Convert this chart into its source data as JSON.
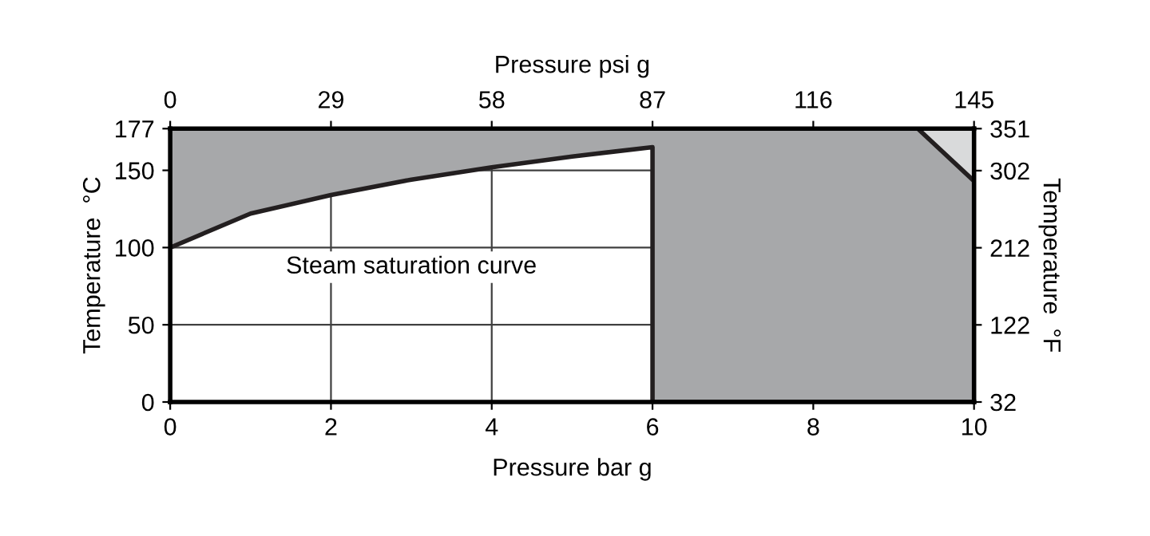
{
  "chart_data": {
    "type": "area",
    "stacked": true,
    "line_style": "solid",
    "xlabel": "Pressure bar g",
    "ylabel": "Temperature  °C",
    "y2label": "Temperature  °F",
    "x2label": "Pressure psi g",
    "xlim": [
      0,
      10
    ],
    "xticks": [
      0,
      2,
      4,
      6,
      8,
      10
    ],
    "ylim": [
      0,
      177
    ],
    "yticks": [
      0,
      50,
      100,
      150,
      177
    ],
    "x2lim": [
      0,
      145
    ],
    "x2ticks": [
      0,
      29,
      58,
      87,
      116,
      145
    ],
    "y2lim": [
      32,
      351
    ],
    "y2ticks": [
      32,
      122,
      212,
      302,
      351
    ],
    "grid": true,
    "legend": false,
    "annotations": [
      "Steam saturation curve"
    ],
    "x": [
      0,
      1,
      2,
      3,
      4,
      5,
      6,
      6,
      9.3,
      10
    ],
    "series": [
      {
        "color": "#ffffff",
        "values": [
          100,
          122,
          134,
          144,
          152,
          159,
          165,
          0,
          0,
          0
        ]
      },
      {
        "color": "#a7a8aa",
        "values": [
          77,
          55,
          43,
          33,
          25,
          18,
          12,
          177,
          177,
          143
        ]
      },
      {
        "color": "#d9dadb",
        "values": [
          0,
          0,
          0,
          0,
          0,
          0,
          0,
          0,
          0,
          34
        ]
      }
    ]
  }
}
